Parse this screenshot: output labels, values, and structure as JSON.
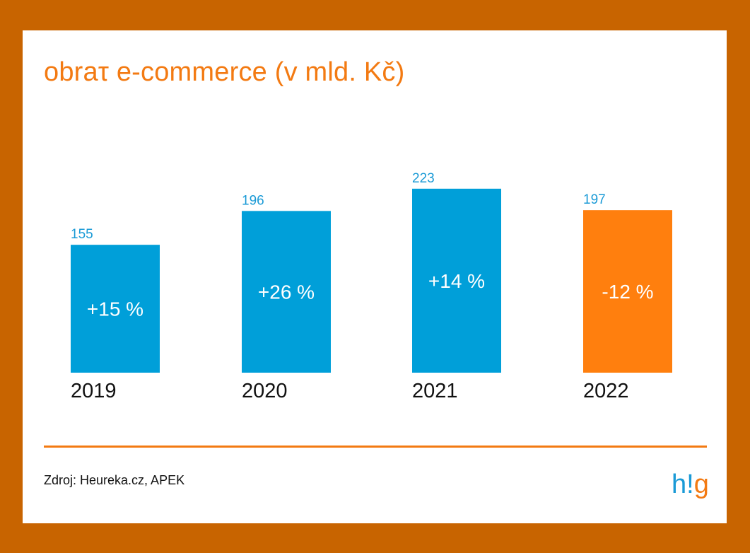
{
  "title": "obraτ e-commerce (v mld. Kč)",
  "source": "Zdroj: Heureka.cz, APEK",
  "logo": {
    "part1": "h!",
    "part2": "g"
  },
  "colors": {
    "background": "#c86400",
    "blue": "#009fd9",
    "orange": "#ff7f0e",
    "title": "#f37a12",
    "logo_blue": "#1a9ad6"
  },
  "chart_data": {
    "type": "bar",
    "title": "obraτ e-commerce (v mld. Kč)",
    "categories": [
      "2019",
      "2020",
      "2021",
      "2022"
    ],
    "values": [
      155,
      196,
      223,
      197
    ],
    "value_labels": [
      "155",
      "196",
      "223",
      "197"
    ],
    "change_labels": [
      "+15 %",
      "+26 %",
      "+14 %",
      "-12 %"
    ],
    "bar_colors": [
      "#009fd9",
      "#009fd9",
      "#009fd9",
      "#ff7f0e"
    ],
    "ylim": [
      0,
      240
    ],
    "grid": false,
    "legend": "none"
  }
}
